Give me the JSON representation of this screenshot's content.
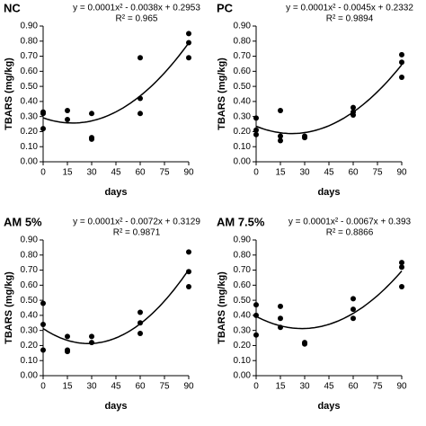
{
  "chart_data": [
    {
      "type": "scatter",
      "title": "NC",
      "equation": "y = 0.0001x² - 0.0038x + 0.2953",
      "r_squared": "R² = 0.965",
      "x_label": "days",
      "y_label": "TBARS (mg/kg)",
      "color": "#000000",
      "trendline": {
        "type": "polynomial",
        "order": 2
      },
      "x": [
        0,
        0,
        0,
        15,
        15,
        30,
        30,
        30,
        60,
        60,
        60,
        90,
        90,
        90
      ],
      "values": [
        0.33,
        0.32,
        0.22,
        0.34,
        0.28,
        0.32,
        0.16,
        0.15,
        0.69,
        0.42,
        0.32,
        0.85,
        0.79,
        0.69
      ],
      "xlim": [
        0,
        90
      ],
      "xticks": [
        0,
        15,
        30,
        45,
        60,
        75,
        90
      ],
      "ylim": [
        0,
        0.9
      ],
      "yticks": [
        {
          "value": 0,
          "label": "0.00"
        },
        {
          "value": 0.1,
          "label": "0.10"
        },
        {
          "value": 0.2,
          "label": "0.20"
        },
        {
          "value": 0.3,
          "label": "0.30"
        },
        {
          "value": 0.4,
          "label": "0.40"
        },
        {
          "value": 0.5,
          "label": "0.50"
        },
        {
          "value": 0.6,
          "label": "0.60"
        },
        {
          "value": 0.7,
          "label": "0.70"
        },
        {
          "value": 0.8,
          "label": "0.80"
        },
        {
          "value": 0.9,
          "label": "0.90"
        }
      ]
    },
    {
      "type": "scatter",
      "title": "PC",
      "equation": "y = 0.0001x² - 0.0045x + 0.2332",
      "r_squared": "R² = 0.9894",
      "x_label": "days",
      "y_label": "TBARS (mg/kg)",
      "color": "#000000",
      "trendline": {
        "type": "polynomial",
        "order": 2
      },
      "x": [
        0,
        0,
        0,
        15,
        15,
        15,
        30,
        30,
        60,
        60,
        60,
        90,
        90,
        90
      ],
      "values": [
        0.29,
        0.21,
        0.18,
        0.34,
        0.17,
        0.14,
        0.17,
        0.16,
        0.36,
        0.33,
        0.31,
        0.71,
        0.66,
        0.56
      ],
      "xlim": [
        0,
        90
      ],
      "xticks": [
        0,
        15,
        30,
        45,
        60,
        75,
        90
      ],
      "ylim": [
        0,
        0.9
      ],
      "yticks": [
        {
          "value": 0,
          "label": "0.00"
        },
        {
          "value": 0.1,
          "label": "0.10"
        },
        {
          "value": 0.2,
          "label": "0.20"
        },
        {
          "value": 0.3,
          "label": "0.30"
        },
        {
          "value": 0.4,
          "label": "0.40"
        },
        {
          "value": 0.5,
          "label": "0.50"
        },
        {
          "value": 0.6,
          "label": "0.60"
        },
        {
          "value": 0.7,
          "label": "0.70"
        },
        {
          "value": 0.8,
          "label": "0.80"
        },
        {
          "value": 0.9,
          "label": "0.90"
        }
      ]
    },
    {
      "type": "scatter",
      "title": "AM 5%",
      "equation": "y = 0.0001x² - 0.0072x + 0.3129",
      "r_squared": "R² = 0.9871",
      "x_label": "days",
      "y_label": "TBARS (mg/kg)",
      "color": "#000000",
      "trendline": {
        "type": "polynomial",
        "order": 2
      },
      "x": [
        0,
        0,
        0,
        15,
        15,
        15,
        30,
        30,
        60,
        60,
        60,
        90,
        90,
        90
      ],
      "values": [
        0.48,
        0.34,
        0.17,
        0.26,
        0.17,
        0.16,
        0.26,
        0.22,
        0.42,
        0.35,
        0.28,
        0.82,
        0.69,
        0.59
      ],
      "xlim": [
        0,
        90
      ],
      "xticks": [
        0,
        15,
        30,
        45,
        60,
        75,
        90
      ],
      "ylim": [
        0,
        0.9
      ],
      "yticks": [
        {
          "value": 0,
          "label": "0.00"
        },
        {
          "value": 0.1,
          "label": "0.10"
        },
        {
          "value": 0.2,
          "label": "0.20"
        },
        {
          "value": 0.3,
          "label": "0.30"
        },
        {
          "value": 0.4,
          "label": "0.40"
        },
        {
          "value": 0.5,
          "label": "0.50"
        },
        {
          "value": 0.6,
          "label": "0.60"
        },
        {
          "value": 0.7,
          "label": "0.70"
        },
        {
          "value": 0.8,
          "label": "0.80"
        },
        {
          "value": 0.9,
          "label": "0.90"
        }
      ]
    },
    {
      "type": "scatter",
      "title": "AM 7.5%",
      "equation": "y = 0.0001x² - 0.0067x + 0.393",
      "r_squared": "R² = 0.8866",
      "x_label": "days",
      "y_label": "TBARS (mg/kg)",
      "color": "#000000",
      "trendline": {
        "type": "polynomial",
        "order": 2
      },
      "x": [
        0,
        0,
        0,
        15,
        15,
        15,
        30,
        30,
        60,
        60,
        60,
        90,
        90,
        90
      ],
      "values": [
        0.47,
        0.4,
        0.27,
        0.46,
        0.38,
        0.32,
        0.22,
        0.21,
        0.51,
        0.44,
        0.38,
        0.75,
        0.72,
        0.59
      ],
      "xlim": [
        0,
        90
      ],
      "xticks": [
        0,
        15,
        30,
        45,
        60,
        75,
        90
      ],
      "ylim": [
        0,
        0.9
      ],
      "yticks": [
        {
          "value": 0,
          "label": "0.00"
        },
        {
          "value": 0.1,
          "label": "0.10"
        },
        {
          "value": 0.2,
          "label": "0.20"
        },
        {
          "value": 0.3,
          "label": "0.30"
        },
        {
          "value": 0.4,
          "label": "0.40"
        },
        {
          "value": 0.5,
          "label": "0.50"
        },
        {
          "value": 0.6,
          "label": "0.60"
        },
        {
          "value": 0.7,
          "label": "0.70"
        },
        {
          "value": 0.8,
          "label": "0.80"
        },
        {
          "value": 0.9,
          "label": "0.90"
        }
      ]
    }
  ]
}
